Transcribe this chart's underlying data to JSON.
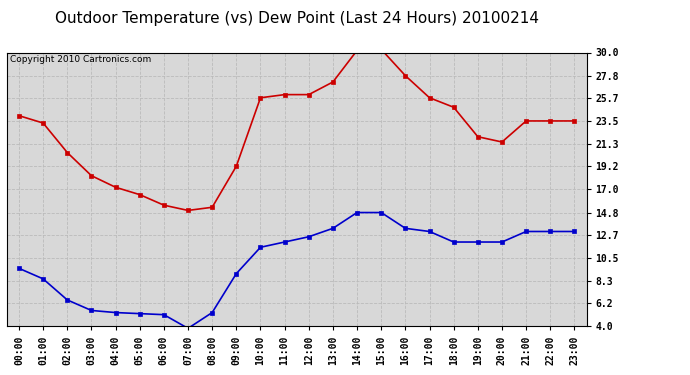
{
  "title": "Outdoor Temperature (vs) Dew Point (Last 24 Hours) 20100214",
  "copyright_text": "Copyright 2010 Cartronics.com",
  "x_labels": [
    "00:00",
    "01:00",
    "02:00",
    "03:00",
    "04:00",
    "05:00",
    "06:00",
    "07:00",
    "08:00",
    "09:00",
    "10:00",
    "11:00",
    "12:00",
    "13:00",
    "14:00",
    "15:00",
    "16:00",
    "17:00",
    "18:00",
    "19:00",
    "20:00",
    "21:00",
    "22:00",
    "23:00"
  ],
  "temp_data": [
    24.0,
    23.3,
    20.5,
    18.3,
    17.2,
    16.5,
    15.5,
    15.0,
    15.3,
    19.2,
    25.7,
    26.0,
    26.0,
    27.2,
    30.2,
    30.3,
    27.8,
    25.7,
    24.8,
    22.0,
    21.5,
    23.5,
    23.5,
    23.5
  ],
  "dew_data": [
    9.5,
    8.5,
    6.5,
    5.5,
    5.3,
    5.2,
    5.1,
    3.8,
    5.3,
    9.0,
    11.5,
    12.0,
    12.5,
    13.3,
    14.8,
    14.8,
    13.3,
    13.0,
    12.0,
    12.0,
    12.0,
    13.0,
    13.0,
    13.0
  ],
  "temp_color": "#cc0000",
  "dew_color": "#0000cc",
  "bg_color": "#d8d8d8",
  "grid_color": "#bbbbbb",
  "ylim": [
    4.0,
    30.0
  ],
  "yticks": [
    4.0,
    6.2,
    8.3,
    10.5,
    12.7,
    14.8,
    17.0,
    19.2,
    21.3,
    23.5,
    25.7,
    27.8,
    30.0
  ],
  "title_fontsize": 11,
  "copyright_fontsize": 6.5,
  "tick_fontsize": 7,
  "marker_size": 3
}
